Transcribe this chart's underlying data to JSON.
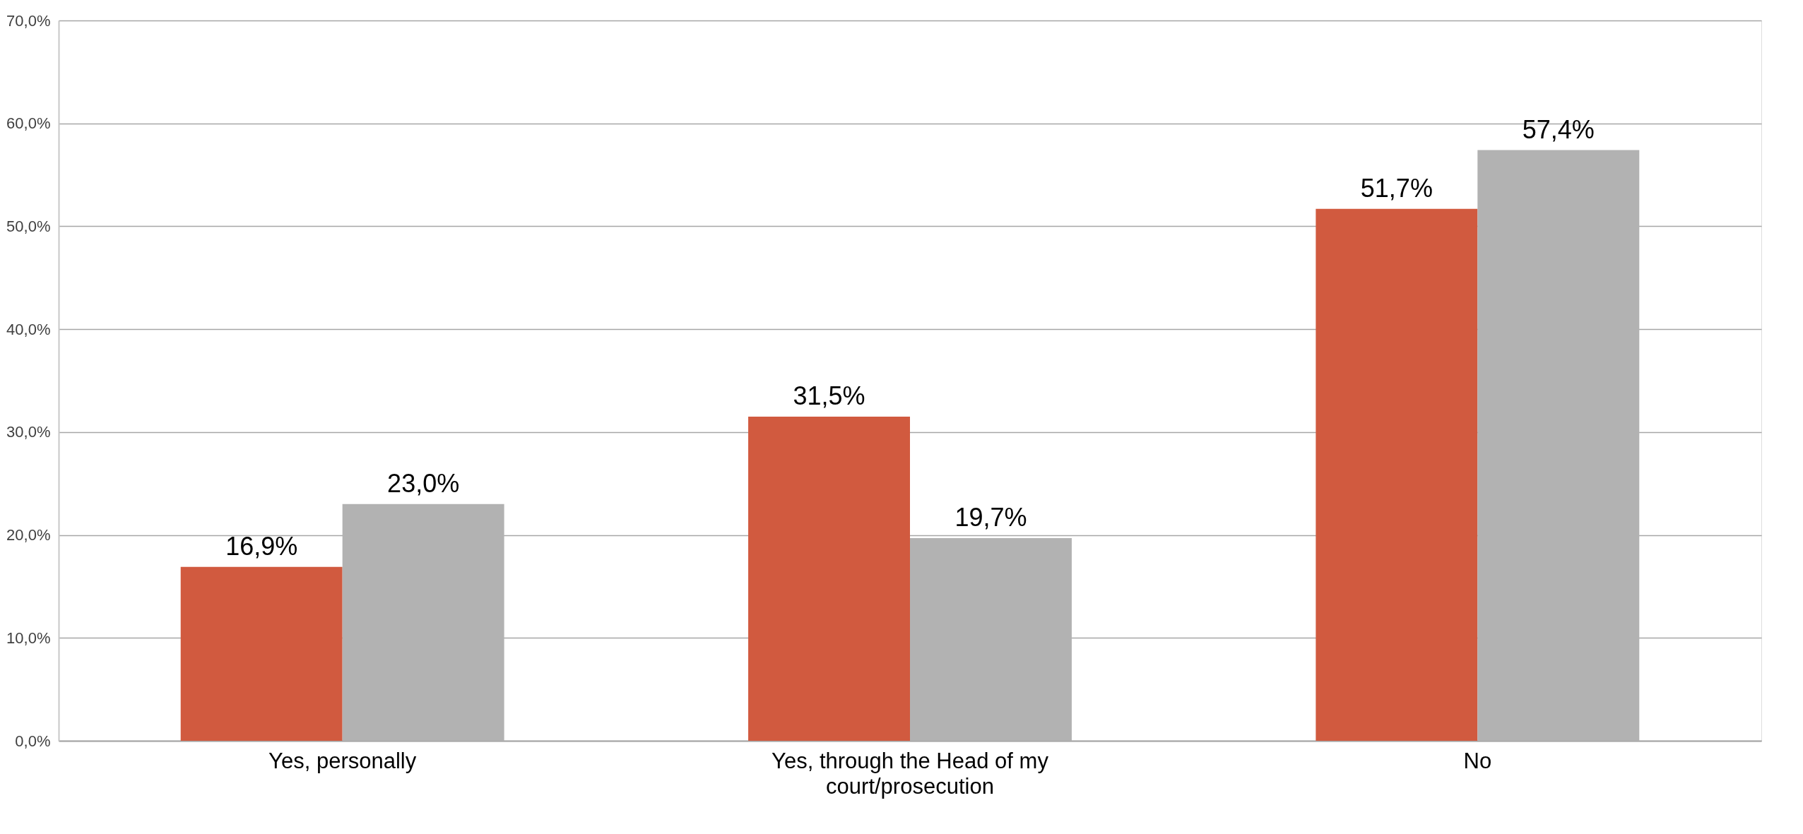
{
  "chart_data": {
    "type": "bar",
    "categories": [
      "Yes, personally",
      "Yes, through the Head of my court/prosecution",
      "No"
    ],
    "series": [
      {
        "color": "#d15a3f",
        "values": [
          16.9,
          31.5,
          51.7
        ],
        "value_labels": [
          "16,9%",
          "31,5%",
          "51,7%"
        ]
      },
      {
        "color": "#b2b2b2",
        "values": [
          23.0,
          19.7,
          57.4
        ],
        "value_labels": [
          "23,0%",
          "19,7%",
          "57,4%"
        ]
      }
    ],
    "ylim": [
      0,
      70
    ],
    "yticks": [
      {
        "value": 0,
        "label": "0,0%"
      },
      {
        "value": 10,
        "label": "10,0%"
      },
      {
        "value": 20,
        "label": "20,0%"
      },
      {
        "value": 30,
        "label": "30,0%"
      },
      {
        "value": 40,
        "label": "40,0%"
      },
      {
        "value": 50,
        "label": "50,0%"
      },
      {
        "value": 60,
        "label": "60,0%"
      },
      {
        "value": 70,
        "label": "70,0%"
      }
    ],
    "grid": "y"
  }
}
